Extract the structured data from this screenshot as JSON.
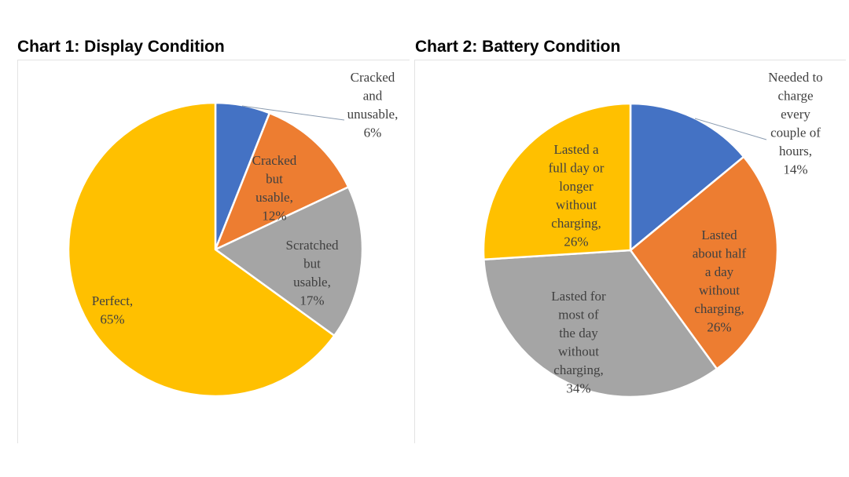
{
  "chart_data": [
    {
      "type": "pie",
      "title": "Chart 1: Display Condition",
      "slices": [
        {
          "label": "Cracked and unusable",
          "label_lines": [
            "Cracked",
            "and",
            "unusable,",
            "6%"
          ],
          "value": 6,
          "color": "#4472C4"
        },
        {
          "label": "Cracked but usable",
          "label_lines": [
            "Cracked",
            "but",
            "usable,",
            "12%"
          ],
          "value": 12,
          "color": "#ED7D31"
        },
        {
          "label": "Scratched but usable",
          "label_lines": [
            "Scratched",
            "but",
            "usable,",
            "17%"
          ],
          "value": 17,
          "color": "#A5A5A5"
        },
        {
          "label": "Perfect",
          "label_lines": [
            "Perfect,",
            "65%"
          ],
          "value": 65,
          "color": "#FFC000"
        }
      ]
    },
    {
      "type": "pie",
      "title": "Chart 2: Battery Condition",
      "slices": [
        {
          "label": "Needed to charge every couple of hours",
          "label_lines": [
            "Needed to",
            "charge",
            "every",
            "couple of",
            "hours,",
            "14%"
          ],
          "value": 14,
          "color": "#4472C4"
        },
        {
          "label": "Lasted about half a day without charging",
          "label_lines": [
            "Lasted",
            "about half",
            "a day",
            "without",
            "charging,",
            "26%"
          ],
          "value": 26,
          "color": "#ED7D31"
        },
        {
          "label": "Lasted for most of the day without charging",
          "label_lines": [
            "Lasted for",
            "most of",
            "the day",
            "without",
            "charging,",
            "34%"
          ],
          "value": 34,
          "color": "#A5A5A5"
        },
        {
          "label": "Lasted a full day or longer without charging",
          "label_lines": [
            "Lasted a",
            "full day or",
            "longer",
            "without",
            "charging,",
            "26%"
          ],
          "value": 26,
          "color": "#FFC000"
        }
      ]
    }
  ]
}
